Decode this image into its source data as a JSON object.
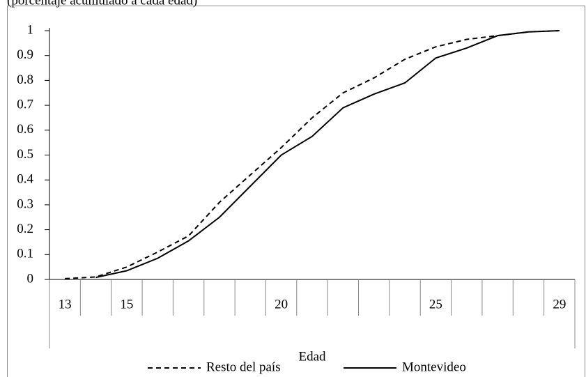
{
  "chart_data": {
    "type": "line",
    "subtitle": "(porcentaje acumulado a cada edad)",
    "x_label": "Edad",
    "categories": [
      "13",
      null,
      "15",
      null,
      null,
      null,
      null,
      "20",
      null,
      null,
      null,
      null,
      "25",
      null,
      null,
      null,
      "29"
    ],
    "series": [
      {
        "name": "Resto del país",
        "color": "#000000",
        "dash": true,
        "values": [
          0.003,
          0.01,
          0.05,
          0.11,
          0.175,
          0.31,
          0.42,
          0.53,
          0.65,
          0.75,
          0.81,
          0.885,
          0.935,
          0.965,
          0.98,
          0.995,
          1.0
        ]
      },
      {
        "name": "Montevideo",
        "color": "#000000",
        "dash": false,
        "values": [
          null,
          0.008,
          0.035,
          0.085,
          0.155,
          0.25,
          0.375,
          0.5,
          0.575,
          0.69,
          0.745,
          0.79,
          0.89,
          0.93,
          0.98,
          0.995,
          1.0
        ]
      }
    ],
    "ylim": [
      0,
      1
    ],
    "yticks": [
      0,
      0.1,
      0.2,
      0.3,
      0.4,
      0.5,
      0.6,
      0.7,
      0.8,
      0.9,
      1
    ],
    "legend": "bottom"
  }
}
